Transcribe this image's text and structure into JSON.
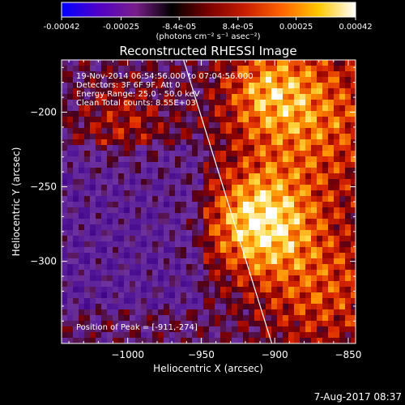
{
  "colorbar": {
    "ticks": [
      "-0.00042",
      "-0.00025",
      "-8.4e-05",
      "8.4e-05",
      "0.00025",
      "0.00042"
    ],
    "tick_values": [
      -0.00042,
      -0.00025,
      -8.4e-05,
      8.4e-05,
      0.00025,
      0.00042
    ],
    "range": [
      -0.00042,
      0.00042
    ],
    "units_label": "(photons cm⁻² s⁻¹ asec⁻²)",
    "gradient_colors": [
      "#0000ff",
      "#5000c8",
      "#7a1e8c",
      "#000000",
      "#7a0000",
      "#c81e00",
      "#ff6400",
      "#ffc800",
      "#ffffff"
    ]
  },
  "chart_data": {
    "type": "heatmap",
    "title": "Reconstructed RHESSI Image",
    "xlabel": "Heliocentric X (arcsec)",
    "ylabel": "Heliocentric Y (arcsec)",
    "xlim": [
      -1045,
      -845
    ],
    "ylim": [
      -355,
      -165
    ],
    "x_ticks": [
      -1000,
      -950,
      -900,
      -850
    ],
    "x_tick_labels": [
      "−1000",
      "−950",
      "−900",
      "−850"
    ],
    "y_ticks": [
      -200,
      -250,
      -300
    ],
    "y_tick_labels": [
      "−200",
      "−250",
      "−300"
    ],
    "info_lines": [
      "19-Nov-2014 06:54:56.000 to 07:04:56.000",
      "Detectors: 3F 6F 9F, Att 0",
      "Energy Range: 25.0 - 50.0 keV",
      "Clean     Total counts: 8.55E+03"
    ],
    "peak_label": "Position of Peak = [-911,-274]",
    "peak_position": [
      -911,
      -274
    ],
    "limb_line": {
      "x1": -962,
      "y1": -165,
      "x2": -902,
      "y2": -355
    },
    "grid": false
  },
  "footer": {
    "timestamp": "7-Aug-2017 08:37"
  }
}
